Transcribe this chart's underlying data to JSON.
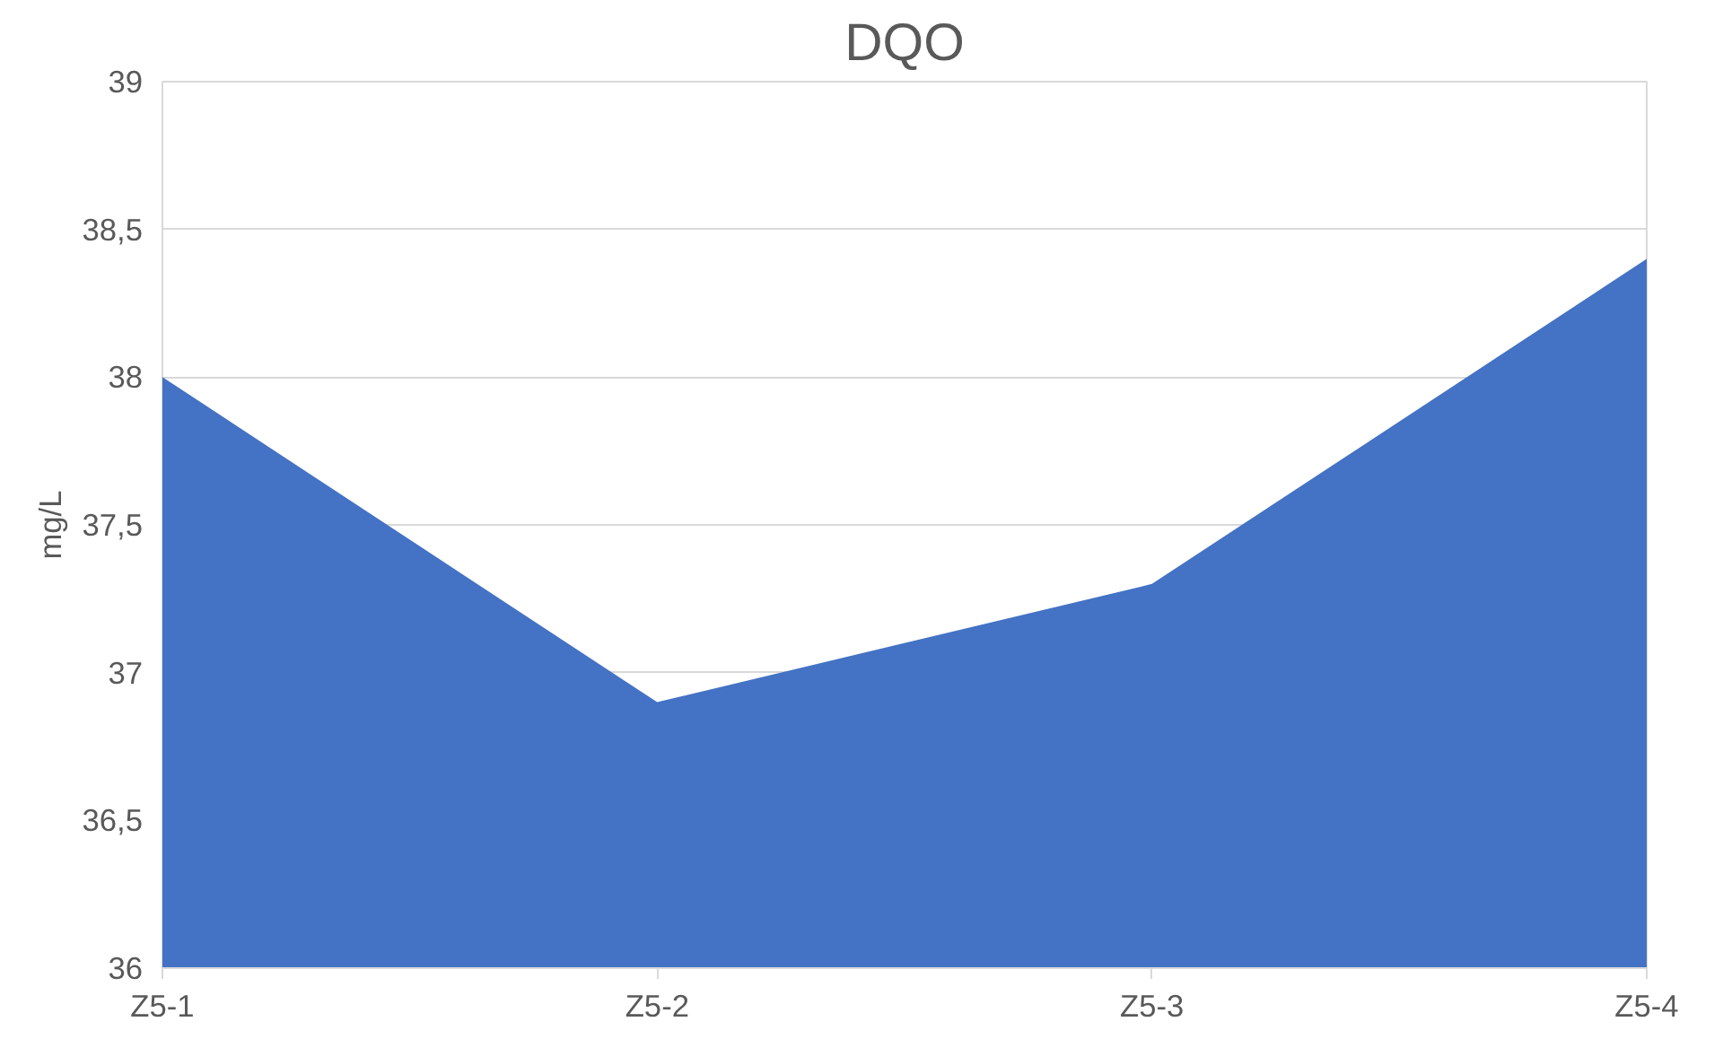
{
  "chart_data": {
    "type": "area",
    "title": "DQO",
    "ylabel": "mg/L",
    "categories": [
      "Z5-1",
      "Z5-2",
      "Z5-3",
      "Z5-4"
    ],
    "series": [
      {
        "color": "#4472c4",
        "values": [
          38,
          36.9,
          37.3,
          38.4
        ]
      }
    ],
    "ylim": [
      36,
      39
    ],
    "yticks": [
      36,
      {
        "value": 36.5,
        "label": "36,5"
      },
      37,
      {
        "value": 37.5,
        "label": "37,5"
      },
      38,
      {
        "value": 38.5,
        "label": "38,5"
      },
      39
    ],
    "grid": "y"
  }
}
